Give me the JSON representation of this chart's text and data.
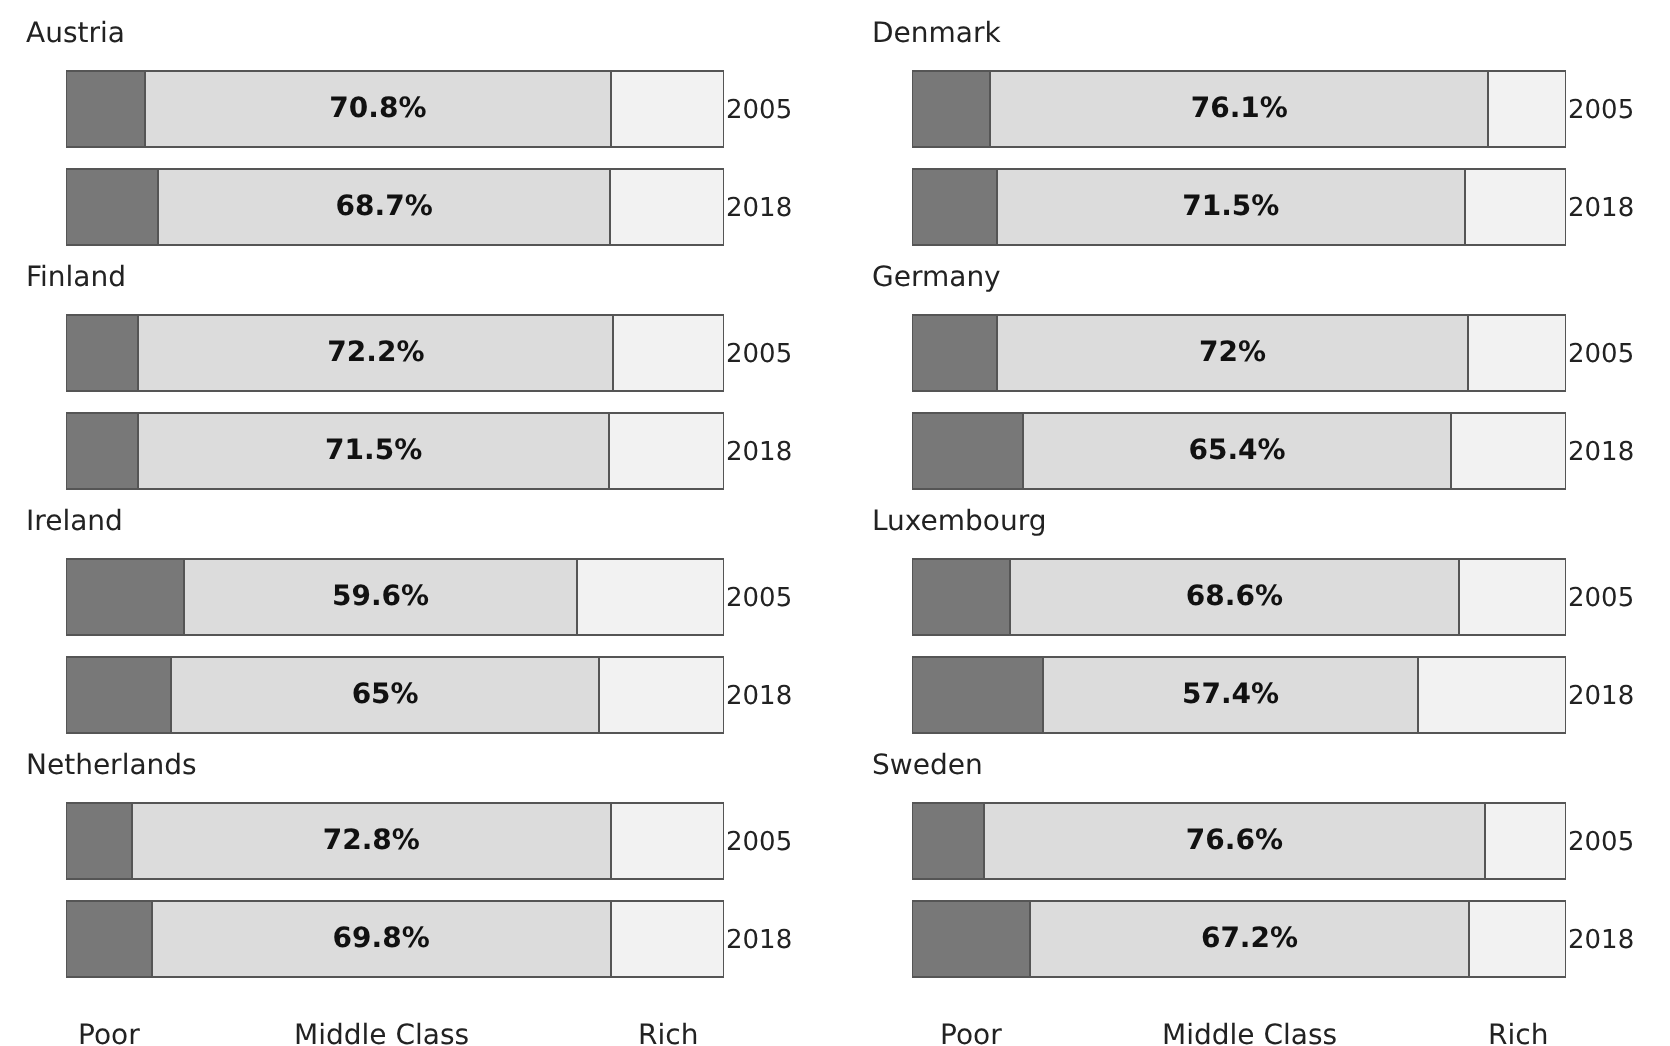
{
  "chart_data": [
    {
      "type": "bar",
      "orientation": "horizontal",
      "stacked": true,
      "title": "Austria",
      "categories": [
        "2005",
        "2018"
      ],
      "series": [
        {
          "color": "#787878",
          "values": [
            12,
            14
          ]
        },
        {
          "color": "#dcdcdc",
          "values": [
            70.8,
            68.7
          ],
          "value_labels": [
            "70.8%",
            "68.7%"
          ]
        },
        {
          "color": "#f2f2f2",
          "values": [
            17.2,
            17.3
          ]
        }
      ]
    },
    {
      "type": "bar",
      "orientation": "horizontal",
      "stacked": true,
      "title": "Denmark",
      "categories": [
        "2005",
        "2018"
      ],
      "series": [
        {
          "color": "#787878",
          "values": [
            12,
            13
          ]
        },
        {
          "color": "#dcdcdc",
          "values": [
            76.1,
            71.5
          ],
          "value_labels": [
            "76.1%",
            "71.5%"
          ]
        },
        {
          "color": "#f2f2f2",
          "values": [
            11.9,
            15.5
          ]
        }
      ]
    },
    {
      "type": "bar",
      "orientation": "horizontal",
      "stacked": true,
      "title": "Finland",
      "categories": [
        "2005",
        "2018"
      ],
      "series": [
        {
          "color": "#787878",
          "values": [
            11,
            11
          ]
        },
        {
          "color": "#dcdcdc",
          "values": [
            72.2,
            71.5
          ],
          "value_labels": [
            "72.2%",
            "71.5%"
          ]
        },
        {
          "color": "#f2f2f2",
          "values": [
            16.8,
            17.5
          ]
        }
      ]
    },
    {
      "type": "bar",
      "orientation": "horizontal",
      "stacked": true,
      "title": "Germany",
      "categories": [
        "2005",
        "2018"
      ],
      "series": [
        {
          "color": "#787878",
          "values": [
            13,
            17
          ]
        },
        {
          "color": "#dcdcdc",
          "values": [
            72,
            65.4
          ],
          "value_labels": [
            "72%",
            "65.4%"
          ]
        },
        {
          "color": "#f2f2f2",
          "values": [
            15,
            17.6
          ]
        }
      ]
    },
    {
      "type": "bar",
      "orientation": "horizontal",
      "stacked": true,
      "title": "Ireland",
      "categories": [
        "2005",
        "2018"
      ],
      "series": [
        {
          "color": "#787878",
          "values": [
            18,
            16
          ]
        },
        {
          "color": "#dcdcdc",
          "values": [
            59.6,
            65
          ],
          "value_labels": [
            "59.6%",
            "65%"
          ]
        },
        {
          "color": "#f2f2f2",
          "values": [
            22.4,
            19
          ]
        }
      ]
    },
    {
      "type": "bar",
      "orientation": "horizontal",
      "stacked": true,
      "title": "Luxembourg",
      "categories": [
        "2005",
        "2018"
      ],
      "series": [
        {
          "color": "#787878",
          "values": [
            15,
            20
          ]
        },
        {
          "color": "#dcdcdc",
          "values": [
            68.6,
            57.4
          ],
          "value_labels": [
            "68.6%",
            "57.4%"
          ]
        },
        {
          "color": "#f2f2f2",
          "values": [
            16.4,
            22.6
          ]
        }
      ]
    },
    {
      "type": "bar",
      "orientation": "horizontal",
      "stacked": true,
      "title": "Netherlands",
      "categories": [
        "2005",
        "2018"
      ],
      "series": [
        {
          "name": "Poor",
          "color": "#787878",
          "values": [
            10,
            13
          ]
        },
        {
          "name": "Middle Class",
          "color": "#dcdcdc",
          "values": [
            72.8,
            69.8
          ],
          "value_labels": [
            "72.8%",
            "69.8%"
          ]
        },
        {
          "name": "Rich",
          "color": "#f2f2f2",
          "values": [
            17.2,
            17.2
          ]
        }
      ]
    },
    {
      "type": "bar",
      "orientation": "horizontal",
      "stacked": true,
      "title": "Sweden",
      "categories": [
        "2005",
        "2018"
      ],
      "series": [
        {
          "name": "Poor",
          "color": "#787878",
          "values": [
            11,
            18
          ]
        },
        {
          "name": "Middle Class",
          "color": "#dcdcdc",
          "values": [
            76.6,
            67.2
          ],
          "value_labels": [
            "76.6%",
            "67.2%"
          ]
        },
        {
          "name": "Rich",
          "color": "#f2f2f2",
          "values": [
            12.4,
            14.8
          ]
        }
      ]
    }
  ]
}
